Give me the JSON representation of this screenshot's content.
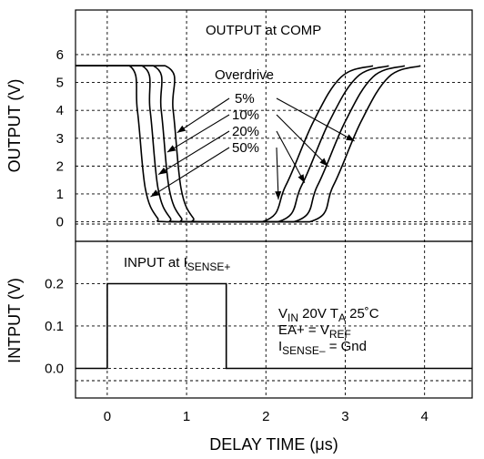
{
  "chart_data": {
    "type": "line",
    "xlabel": "DELAY TIME (µs)",
    "xlim": [
      -0.4,
      4.6
    ],
    "xticks": [
      "0",
      "1",
      "2",
      "3",
      "4"
    ],
    "panels": [
      {
        "id": "output",
        "ylabel": "OUTPUT (V)",
        "title": "OUTPUT at COMP",
        "ylim": [
          -0.7,
          7.6
        ],
        "yticks": [
          "0",
          "1",
          "2",
          "3",
          "4",
          "5",
          "6"
        ],
        "legend_title": "Overdrive",
        "series": [
          {
            "name": "5%",
            "x": [
              -0.4,
              0.73,
              0.83,
              0.93,
              1.08,
              1.22,
              2.55,
              2.85,
              3.2,
              3.55,
              3.95
            ],
            "y": [
              5.6,
              5.6,
              4.0,
              1.2,
              0.15,
              0.0,
              0.0,
              1.3,
              3.6,
              5.2,
              5.6
            ]
          },
          {
            "name": "10%",
            "x": [
              -0.4,
              0.58,
              0.68,
              0.78,
              0.93,
              1.07,
              2.35,
              2.65,
              3.0,
              3.35,
              3.75
            ],
            "y": [
              5.6,
              5.6,
              4.0,
              1.2,
              0.15,
              0.0,
              0.0,
              1.3,
              3.6,
              5.2,
              5.6
            ]
          },
          {
            "name": "20%",
            "x": [
              -0.4,
              0.44,
              0.54,
              0.64,
              0.79,
              0.93,
              2.15,
              2.45,
              2.8,
              3.15,
              3.55
            ],
            "y": [
              5.6,
              5.6,
              4.0,
              1.2,
              0.15,
              0.0,
              0.0,
              1.3,
              3.6,
              5.2,
              5.6
            ]
          },
          {
            "name": "50%",
            "x": [
              -0.4,
              0.28,
              0.38,
              0.48,
              0.63,
              0.77,
              1.95,
              2.25,
              2.6,
              2.95,
              3.35
            ],
            "y": [
              5.6,
              5.6,
              4.0,
              1.2,
              0.15,
              0.0,
              0.0,
              1.3,
              3.6,
              5.2,
              5.6
            ]
          }
        ]
      },
      {
        "id": "input",
        "ylabel": "INTPUT (V)",
        "title": "INPUT at I",
        "title_sub": "SENSE+",
        "ylim": [
          -0.07,
          0.3
        ],
        "yticks": [
          "0.0",
          "0.1",
          "0.2"
        ],
        "series": [
          {
            "name": "INPUT at ISENSE+",
            "x": [
              -0.4,
              0,
              0,
              1.5,
              1.5,
              4.6
            ],
            "y": [
              0,
              0,
              0.2,
              0.2,
              0,
              0
            ]
          }
        ]
      }
    ],
    "conditions": {
      "line1": {
        "a": "V",
        "a_sub": "IN",
        "b": " 20V  T",
        "b_sub": "A",
        "c": "  25˚C"
      },
      "line2": {
        "a": "EA+ = V",
        "a_sub": "REF"
      },
      "line3": {
        "a": "I",
        "a_sub": "SENSE–",
        "b": " = Gnd"
      }
    }
  }
}
